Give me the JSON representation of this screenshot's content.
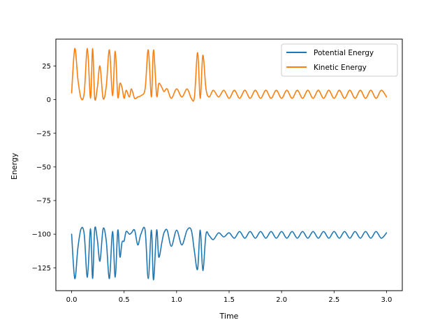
{
  "chart_data": {
    "type": "line",
    "title": "",
    "xlabel": "Time",
    "ylabel": "Energy",
    "xlim": [
      -0.15,
      3.15
    ],
    "ylim": [
      -142,
      45
    ],
    "xticks": [
      0.0,
      0.5,
      1.0,
      1.5,
      2.0,
      2.5,
      3.0
    ],
    "xtick_labels": [
      "0.0",
      "0.5",
      "1.0",
      "1.5",
      "2.0",
      "2.5",
      "3.0"
    ],
    "yticks": [
      25,
      0,
      -25,
      -50,
      -75,
      -100,
      -125
    ],
    "ytick_labels": [
      "25",
      "0",
      "−25",
      "−50",
      "−75",
      "−100",
      "−125"
    ],
    "legend_position": "top-right",
    "series": [
      {
        "name": "Potential Energy",
        "color": "#1f77b4",
        "x": [
          0.0,
          0.03,
          0.06,
          0.09,
          0.12,
          0.15,
          0.18,
          0.2,
          0.22,
          0.245,
          0.27,
          0.3,
          0.33,
          0.36,
          0.39,
          0.415,
          0.44,
          0.46,
          0.48,
          0.5,
          0.52,
          0.55,
          0.57,
          0.6,
          0.63,
          0.66,
          0.7,
          0.73,
          0.76,
          0.78,
          0.81,
          0.83,
          0.86,
          0.88,
          0.91,
          0.95,
          1.0,
          1.05,
          1.1,
          1.14,
          1.17,
          1.2,
          1.225,
          1.25,
          1.28,
          1.31,
          1.35,
          1.4,
          1.45,
          1.5,
          1.55,
          1.6,
          1.65,
          1.7,
          1.75,
          1.8,
          1.85,
          1.9,
          1.95,
          2.0,
          2.05,
          2.1,
          2.15,
          2.2,
          2.25,
          2.3,
          2.35,
          2.4,
          2.45,
          2.5,
          2.55,
          2.6,
          2.65,
          2.7,
          2.75,
          2.8,
          2.85,
          2.9,
          2.95,
          3.0
        ],
        "y": [
          -100,
          -133,
          -110,
          -96,
          -100,
          -132,
          -96,
          -133,
          -96,
          -104,
          -120,
          -96,
          -105,
          -133,
          -98,
          -132,
          -97,
          -117,
          -106,
          -105,
          -98,
          -100,
          -99,
          -97,
          -108,
          -100,
          -97,
          -133,
          -97,
          -134,
          -97,
          -117,
          -106,
          -99,
          -97,
          -109,
          -97,
          -108,
          -97,
          -97,
          -113,
          -126,
          -97,
          -127,
          -100,
          -101,
          -104,
          -99,
          -102,
          -99,
          -103,
          -98,
          -103,
          -98,
          -103,
          -98,
          -103,
          -98,
          -103,
          -98,
          -103,
          -98,
          -103,
          -98,
          -103,
          -98,
          -103,
          -98,
          -103,
          -98,
          -103,
          -98,
          -103,
          -98,
          -103,
          -98,
          -103,
          -98,
          -103,
          -99
        ]
      },
      {
        "name": "Kinetic Energy",
        "color": "#ff7f0e",
        "x": [
          0.0,
          0.03,
          0.06,
          0.09,
          0.12,
          0.15,
          0.18,
          0.2,
          0.22,
          0.245,
          0.27,
          0.3,
          0.33,
          0.36,
          0.39,
          0.415,
          0.44,
          0.46,
          0.48,
          0.5,
          0.52,
          0.55,
          0.57,
          0.6,
          0.63,
          0.66,
          0.7,
          0.73,
          0.76,
          0.78,
          0.81,
          0.83,
          0.86,
          0.88,
          0.91,
          0.95,
          1.0,
          1.05,
          1.1,
          1.14,
          1.17,
          1.2,
          1.225,
          1.25,
          1.28,
          1.31,
          1.35,
          1.4,
          1.45,
          1.5,
          1.55,
          1.6,
          1.65,
          1.7,
          1.75,
          1.8,
          1.85,
          1.9,
          1.95,
          2.0,
          2.05,
          2.1,
          2.15,
          2.2,
          2.25,
          2.3,
          2.35,
          2.4,
          2.45,
          2.5,
          2.55,
          2.6,
          2.65,
          2.7,
          2.75,
          2.8,
          2.85,
          2.9,
          2.95,
          3.0
        ],
        "y": [
          5,
          38,
          15,
          1,
          5,
          38,
          1,
          38,
          1,
          9,
          25,
          1,
          10,
          37,
          3,
          36,
          2,
          12,
          9,
          1,
          7,
          2,
          8,
          1,
          2,
          3,
          8,
          37,
          2,
          37,
          3,
          12,
          9,
          6,
          8,
          1,
          8,
          2,
          8,
          1,
          2,
          35,
          1,
          33,
          8,
          2,
          7,
          2,
          7,
          1,
          7,
          1,
          7,
          1,
          7,
          1,
          7,
          1,
          7,
          1,
          7,
          1,
          7,
          1,
          7,
          1,
          7,
          1,
          7,
          1,
          7,
          1,
          7,
          1,
          7,
          1,
          7,
          1,
          7,
          2
        ]
      }
    ]
  }
}
